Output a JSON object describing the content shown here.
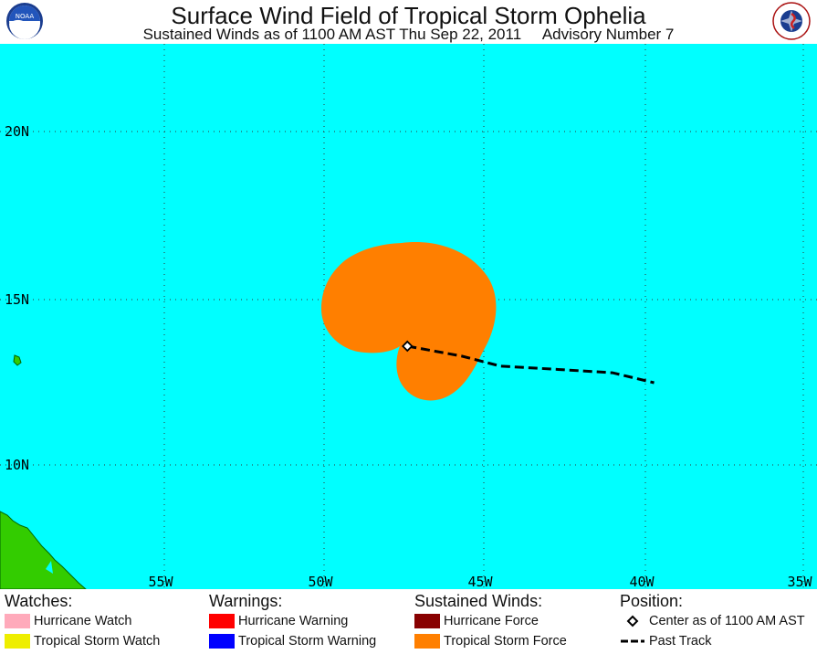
{
  "header": {
    "title": "Surface Wind Field of Tropical Storm Ophelia",
    "subtitle": "Sustained Winds as of 1100 AM AST Thu Sep 22, 2011     Advisory Number 7",
    "left_logo": {
      "icon": "noaa-logo-icon",
      "text": "NOAA"
    },
    "right_logo": {
      "icon": "nws-logo-icon",
      "text": "NATIONAL WEATHER SERVICE"
    }
  },
  "map": {
    "ocean_color": "#00ffff",
    "land_color": "#33cc00",
    "lat_labels": [
      "20N",
      "15N",
      "10N"
    ],
    "lon_labels": [
      "55W",
      "50W",
      "45W",
      "40W",
      "35W"
    ],
    "wind_field_color": "#ff7f00",
    "storm_center": {
      "lat": 13.6,
      "lon": -47.4
    },
    "past_track": [
      {
        "lat": 13.6,
        "lon": -47.4
      },
      {
        "lat": 13.3,
        "lon": -45.7
      },
      {
        "lat": 13.0,
        "lon": -44.5
      },
      {
        "lat": 12.9,
        "lon": -42.7
      },
      {
        "lat": 12.8,
        "lon": -41.0
      },
      {
        "lat": 12.5,
        "lon": -39.7
      }
    ]
  },
  "legend": {
    "watches": {
      "heading": "Watches:",
      "items": [
        {
          "label": "Hurricane Watch",
          "color": "#ffaabb"
        },
        {
          "label": "Tropical Storm Watch",
          "color": "#eeee00"
        }
      ]
    },
    "warnings": {
      "heading": "Warnings:",
      "items": [
        {
          "label": "Hurricane Warning",
          "color": "#ff0000"
        },
        {
          "label": "Tropical Storm Warning",
          "color": "#0000ff"
        }
      ]
    },
    "winds": {
      "heading": "Sustained Winds:",
      "items": [
        {
          "label": "Hurricane Force",
          "color": "#880000"
        },
        {
          "label": "Tropical Storm Force",
          "color": "#ff7f00"
        }
      ]
    },
    "position": {
      "heading": "Position:",
      "items": [
        {
          "label": "Center as of 1100 AM AST",
          "icon": "diamond-icon"
        },
        {
          "label": "Past Track",
          "icon": "dashed-line-icon"
        }
      ]
    }
  }
}
